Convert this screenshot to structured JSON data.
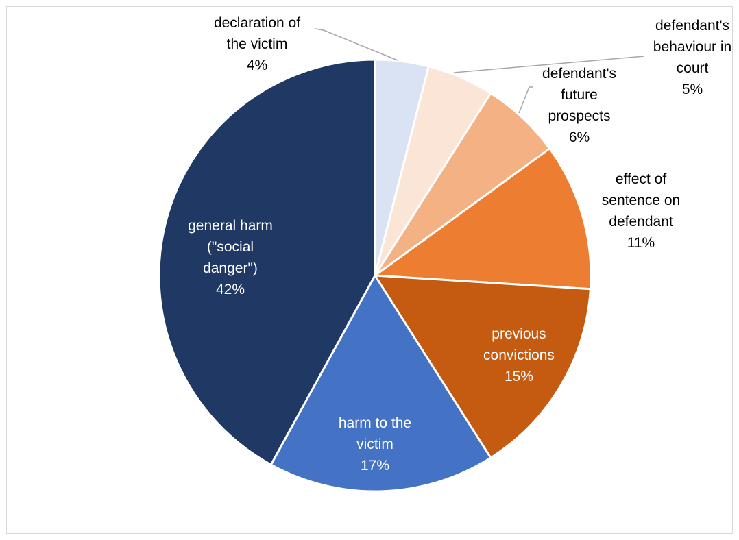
{
  "chart_data": {
    "type": "pie",
    "title": "",
    "slices": [
      {
        "label_lines": [
          "declaration of",
          "the victim"
        ],
        "pct_label": "4%",
        "value": 4,
        "color": "#dae3f3",
        "text_color": "#000000"
      },
      {
        "label_lines": [
          "defendant's",
          "behaviour in",
          "court"
        ],
        "pct_label": "5%",
        "value": 5,
        "color": "#fbe5d6",
        "text_color": "#000000"
      },
      {
        "label_lines": [
          "defendant's",
          "future",
          "prospects"
        ],
        "pct_label": "6%",
        "value": 6,
        "color": "#f4b183",
        "text_color": "#000000"
      },
      {
        "label_lines": [
          "effect of",
          "sentence on",
          "defendant"
        ],
        "pct_label": "11%",
        "value": 11,
        "color": "#ed7d31",
        "text_color": "#000000"
      },
      {
        "label_lines": [
          "previous",
          "convictions"
        ],
        "pct_label": "15%",
        "value": 15,
        "color": "#c55a11",
        "text_color": "#ffffff"
      },
      {
        "label_lines": [
          "harm to the",
          "victim"
        ],
        "pct_label": "17%",
        "value": 17,
        "color": "#4472c4",
        "text_color": "#ffffff"
      },
      {
        "label_lines": [
          "general harm",
          "(\"social",
          "danger\")"
        ],
        "pct_label": "42%",
        "value": 42,
        "color": "#203864",
        "text_color": "#ffffff"
      }
    ],
    "legend": "none"
  }
}
